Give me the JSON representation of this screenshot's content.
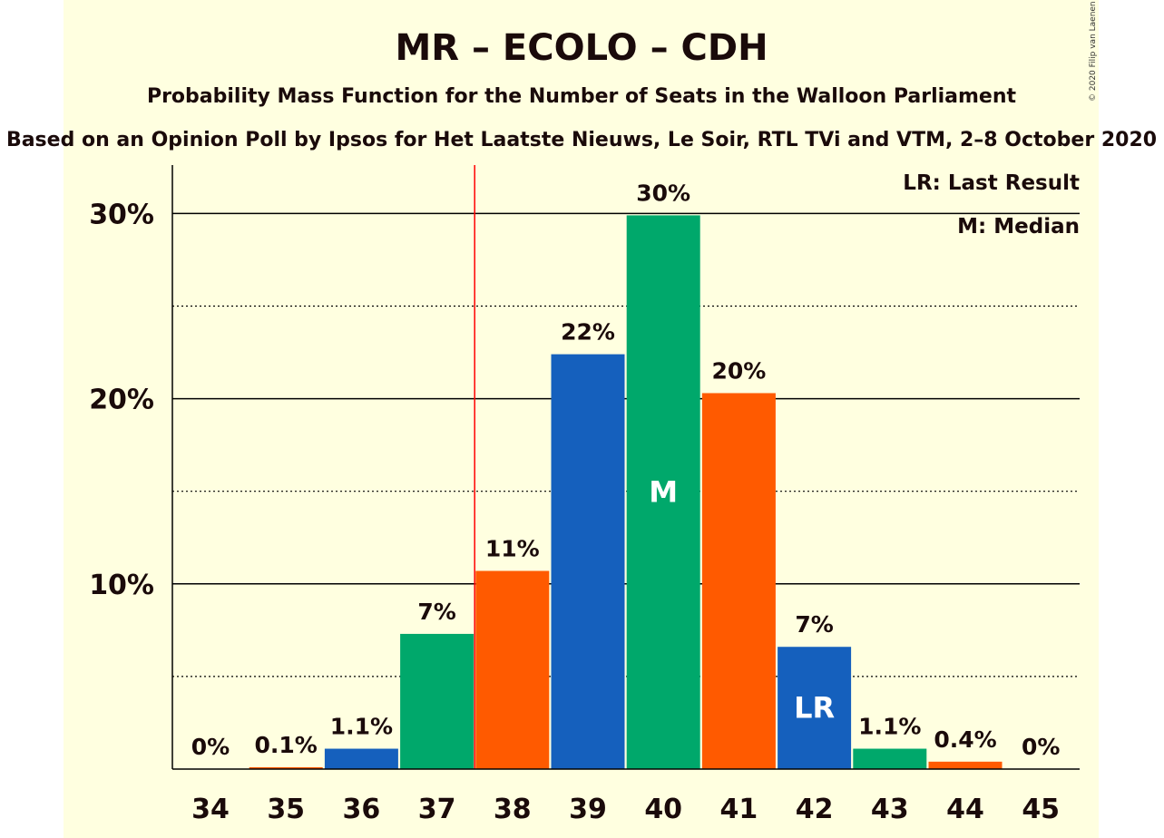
{
  "title": "MR – ECOLO – CDH",
  "subtitle": "Probability Mass Function for the Number of Seats in the Walloon Parliament",
  "subtitle2": "Based on an Opinion Poll by Ipsos for Het Laatste Nieuws, Le Soir, RTL TVi and VTM, 2–8 October 2020",
  "copyright": "© 2020 Filip van Laenen",
  "legend": {
    "last_result": "LR: Last Result",
    "median": "M: Median"
  },
  "colors": {
    "background": "#ffffe0",
    "blue": "#1560bd",
    "green": "#00a86b",
    "orange": "#ff5a00",
    "last_result_line": "#ff0000"
  },
  "chart_data": {
    "type": "bar",
    "categories": [
      "34",
      "35",
      "36",
      "37",
      "38",
      "39",
      "40",
      "41",
      "42",
      "43",
      "44",
      "45"
    ],
    "values": [
      0,
      0.1,
      1.1,
      7.3,
      10.7,
      22.4,
      29.9,
      20.3,
      6.6,
      1.1,
      0.4,
      0
    ],
    "labels": [
      "0%",
      "0.1%",
      "1.1%",
      "7%",
      "11%",
      "22%",
      "30%",
      "20%",
      "7%",
      "1.1%",
      "0.4%",
      "0%"
    ],
    "bar_colors": [
      "orange",
      "orange",
      "blue",
      "green",
      "orange",
      "blue",
      "green",
      "orange",
      "blue",
      "green",
      "orange",
      "orange"
    ],
    "y_ticks": [
      10,
      20,
      30
    ],
    "y_tick_labels": [
      "10%",
      "20%",
      "30%"
    ],
    "y_minor_ticks": [
      5,
      15,
      25
    ],
    "ylim": [
      0,
      32.5
    ],
    "median_category": "40",
    "median_marker": "M",
    "last_result_category": "42",
    "last_result_marker": "LR",
    "last_result_line_between": [
      "37",
      "38"
    ],
    "grid": true,
    "legend_position": "top-right"
  }
}
